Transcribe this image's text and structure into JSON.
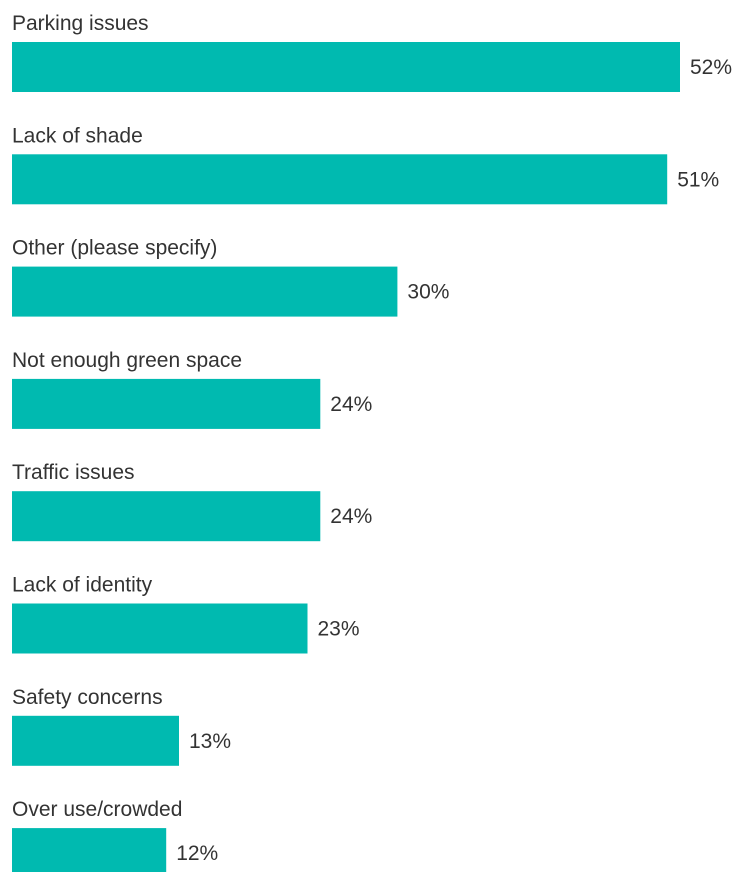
{
  "chart_data": {
    "type": "bar",
    "orientation": "horizontal",
    "categories": [
      "Parking issues",
      "Lack of shade",
      "Other (please specify)",
      "Not enough green space",
      "Traffic issues",
      "Lack of identity",
      "Safety concerns",
      "Over use/crowded"
    ],
    "values": [
      52,
      51,
      30,
      24,
      24,
      23,
      13,
      12
    ],
    "value_labels": [
      "52%",
      "51%",
      "30%",
      "24%",
      "24%",
      "23%",
      "13%",
      "12%"
    ],
    "unit": "%",
    "title": "",
    "xlabel": "",
    "ylabel": "",
    "xlim": [
      0,
      52
    ],
    "grid": false,
    "legend": "none",
    "bar_color": "#00BAB0",
    "text_color": "#333333"
  }
}
